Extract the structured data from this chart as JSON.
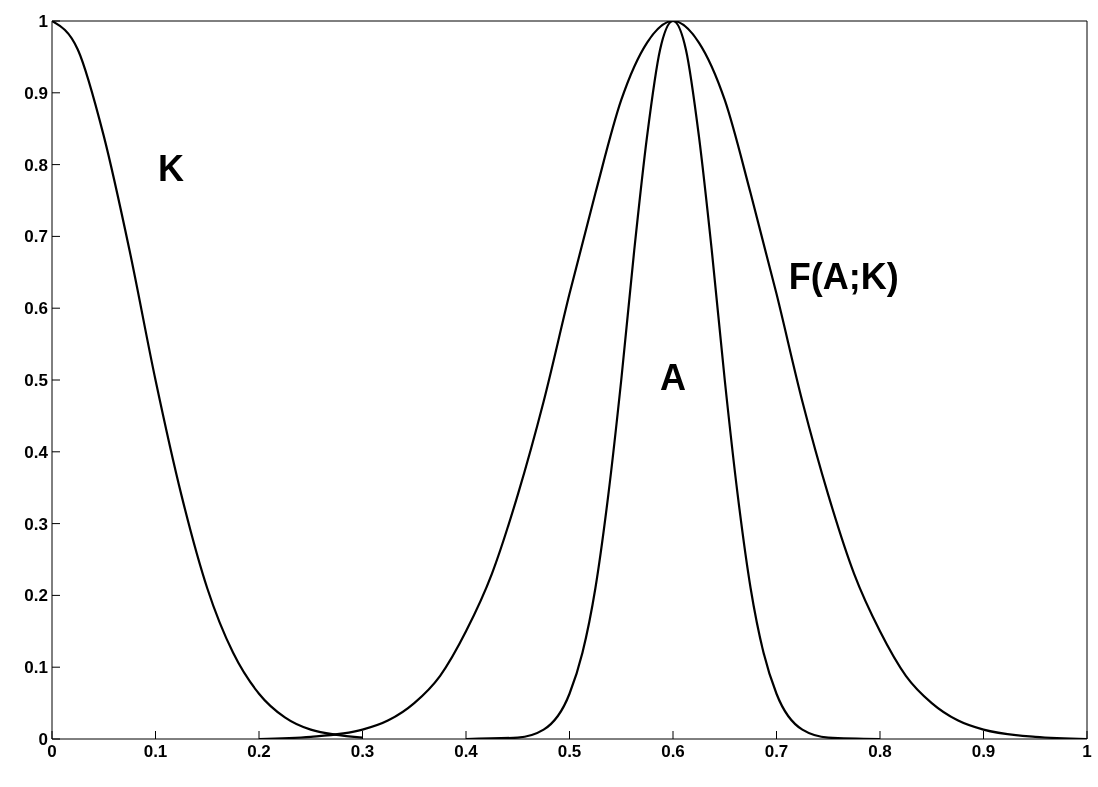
{
  "chart_data": {
    "type": "line",
    "marker": "none",
    "line_style": "solid",
    "grid": false,
    "legend": false,
    "xlim": [
      0,
      1
    ],
    "ylim": [
      0,
      1
    ],
    "xticks": [
      0,
      0.1,
      0.2,
      0.3,
      0.4,
      0.5,
      0.6,
      0.7,
      0.8,
      0.9,
      1
    ],
    "yticks": [
      0,
      0.1,
      0.2,
      0.3,
      0.4,
      0.5,
      0.6,
      0.7,
      0.8,
      0.9,
      1
    ],
    "series": [
      {
        "name": "K",
        "color": "#000000",
        "x": [
          0,
          0.025,
          0.05,
          0.075,
          0.1,
          0.125,
          0.15,
          0.175,
          0.2,
          0.225,
          0.25,
          0.3
        ],
        "values": [
          1,
          0.96,
          0.84,
          0.68,
          0.5,
          0.34,
          0.21,
          0.12,
          0.063,
          0.03,
          0.013,
          0.002
        ]
      },
      {
        "name": "A",
        "color": "#000000",
        "x": [
          0.4,
          0.45,
          0.475,
          0.5,
          0.5125,
          0.525,
          0.5375,
          0.55,
          0.5625,
          0.575,
          0.5875,
          0.6,
          0.6125,
          0.625,
          0.6375,
          0.65,
          0.6625,
          0.675,
          0.6875,
          0.7,
          0.725,
          0.75,
          0.8
        ],
        "values": [
          0,
          0.002,
          0.013,
          0.063,
          0.12,
          0.21,
          0.34,
          0.5,
          0.68,
          0.84,
          0.96,
          1,
          0.96,
          0.84,
          0.68,
          0.5,
          0.34,
          0.21,
          0.12,
          0.063,
          0.013,
          0.002,
          0
        ]
      },
      {
        "name": "F(A;K)",
        "color": "#000000",
        "x": [
          0.2,
          0.25,
          0.3,
          0.325,
          0.35,
          0.375,
          0.4,
          0.425,
          0.45,
          0.475,
          0.5,
          0.525,
          0.55,
          0.575,
          0.6,
          0.625,
          0.65,
          0.675,
          0.7,
          0.725,
          0.75,
          0.775,
          0.8,
          0.825,
          0.85,
          0.875,
          0.9,
          0.95,
          1
        ],
        "values": [
          0,
          0.003,
          0.013,
          0.026,
          0.05,
          0.088,
          0.15,
          0.23,
          0.34,
          0.47,
          0.62,
          0.76,
          0.89,
          0.97,
          1,
          0.97,
          0.89,
          0.76,
          0.62,
          0.47,
          0.34,
          0.23,
          0.15,
          0.088,
          0.05,
          0.026,
          0.013,
          0.003,
          0
        ]
      }
    ]
  }
}
